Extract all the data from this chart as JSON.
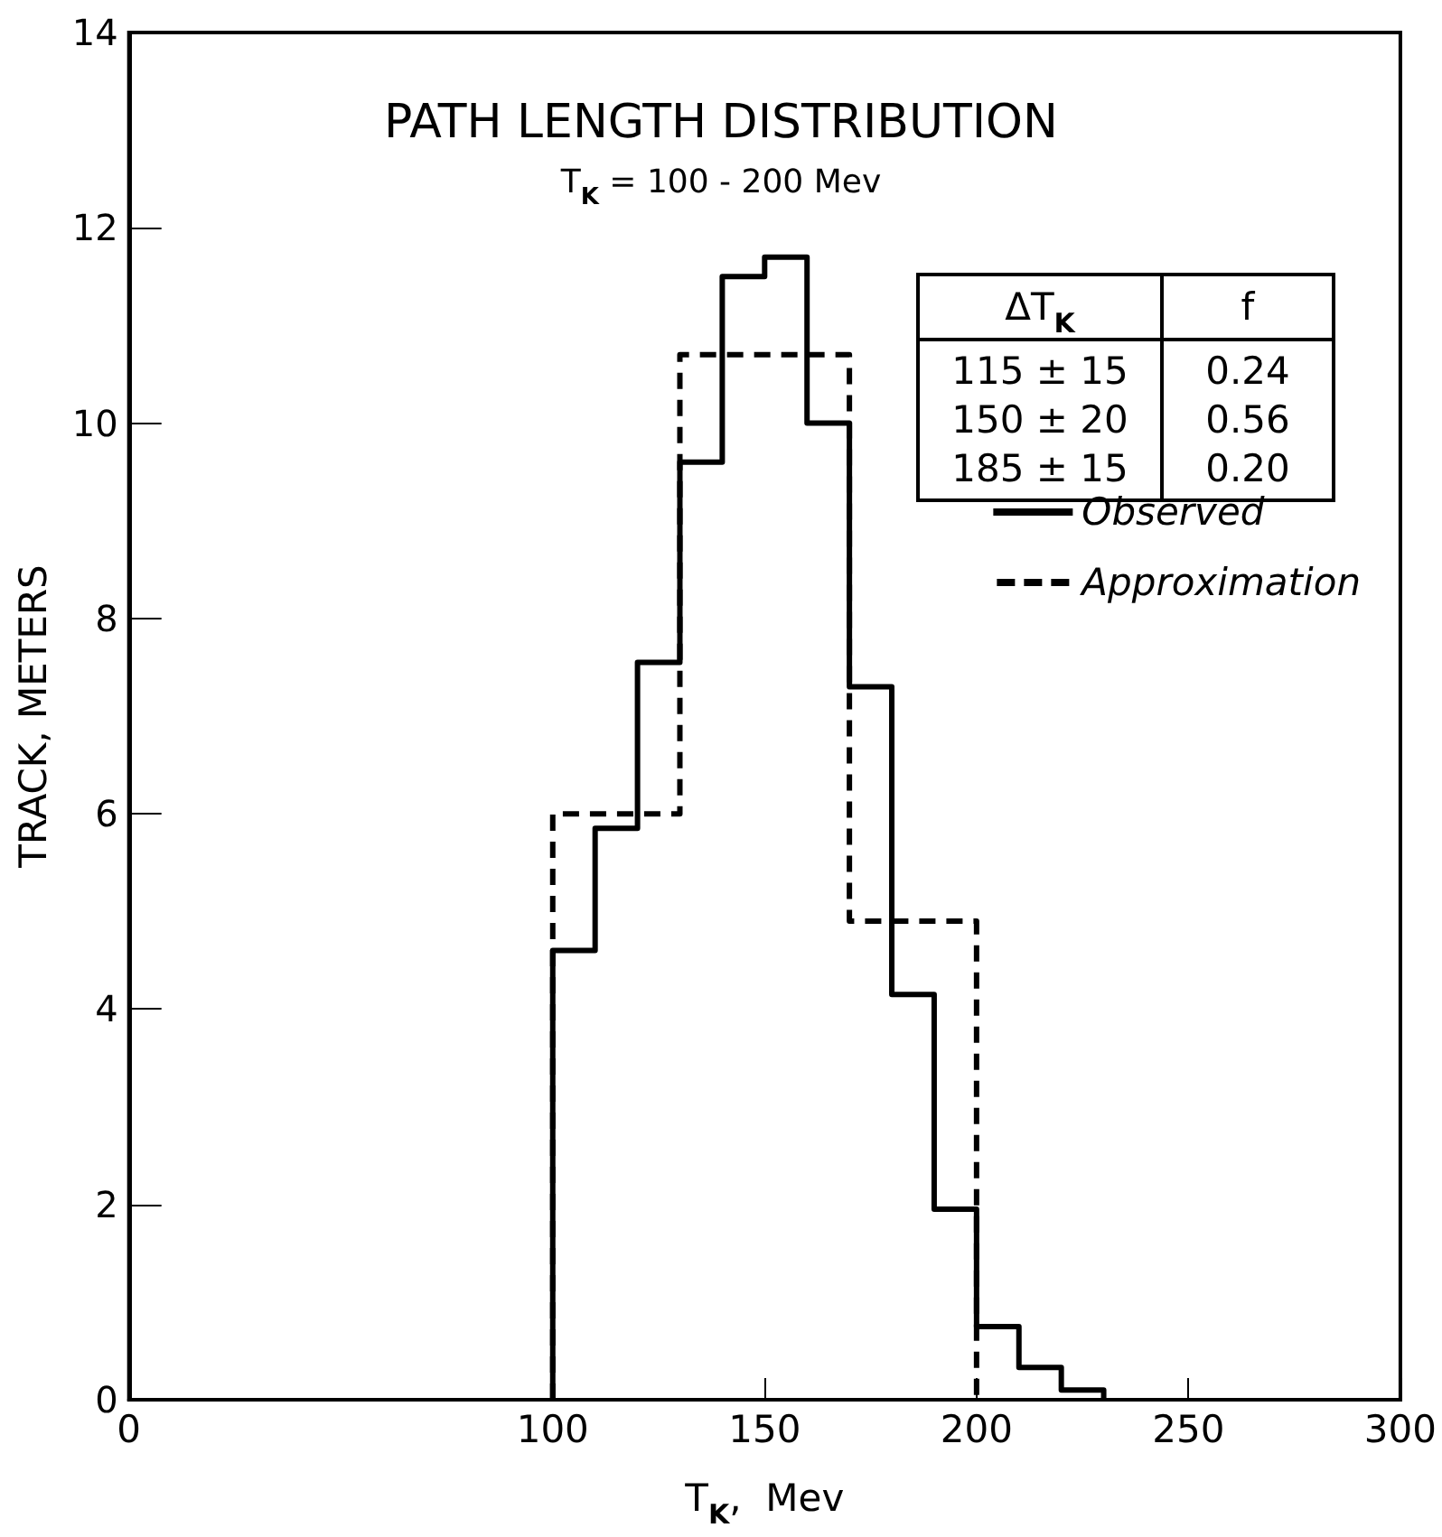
{
  "chart_data": {
    "type": "step",
    "title": "PATH LENGTH DISTRIBUTION",
    "subtitle": "T$_{K}$ = 100 - 200 Mev",
    "xlabel": "T$_{K}$,  Mev",
    "ylabel": "TRACK, METERS",
    "series": [
      {
        "name": "Observed",
        "color": "#000000",
        "line_style": "solid",
        "x": [
          100,
          100,
          110,
          120,
          130,
          140,
          150,
          160,
          170,
          180,
          190,
          200,
          210,
          220,
          230
        ],
        "values": [
          0,
          4.6,
          5.85,
          7.55,
          9.6,
          11.5,
          11.7,
          10.0,
          7.3,
          4.15,
          1.95,
          0.75,
          0.33,
          0.1,
          0
        ]
      },
      {
        "name": "Approximation",
        "color": "#000000",
        "line_style": "dashed",
        "x": [
          100,
          100,
          130,
          170,
          200
        ],
        "values": [
          0,
          6.0,
          10.7,
          4.9,
          0
        ]
      }
    ],
    "annotations": [
      "ΔT$_{K}$",
      "f",
      "115 ± 15",
      "0.24",
      "150 ± 20",
      "0.56",
      "185 ± 15",
      "0.20"
    ],
    "xlim": [
      0,
      300
    ],
    "xticks": [
      0,
      100,
      150,
      200,
      250,
      300
    ],
    "ylim": [
      0,
      14
    ],
    "yticks": [
      0,
      2,
      4,
      6,
      8,
      10,
      12,
      14
    ],
    "grid": false,
    "legend": "top right"
  }
}
